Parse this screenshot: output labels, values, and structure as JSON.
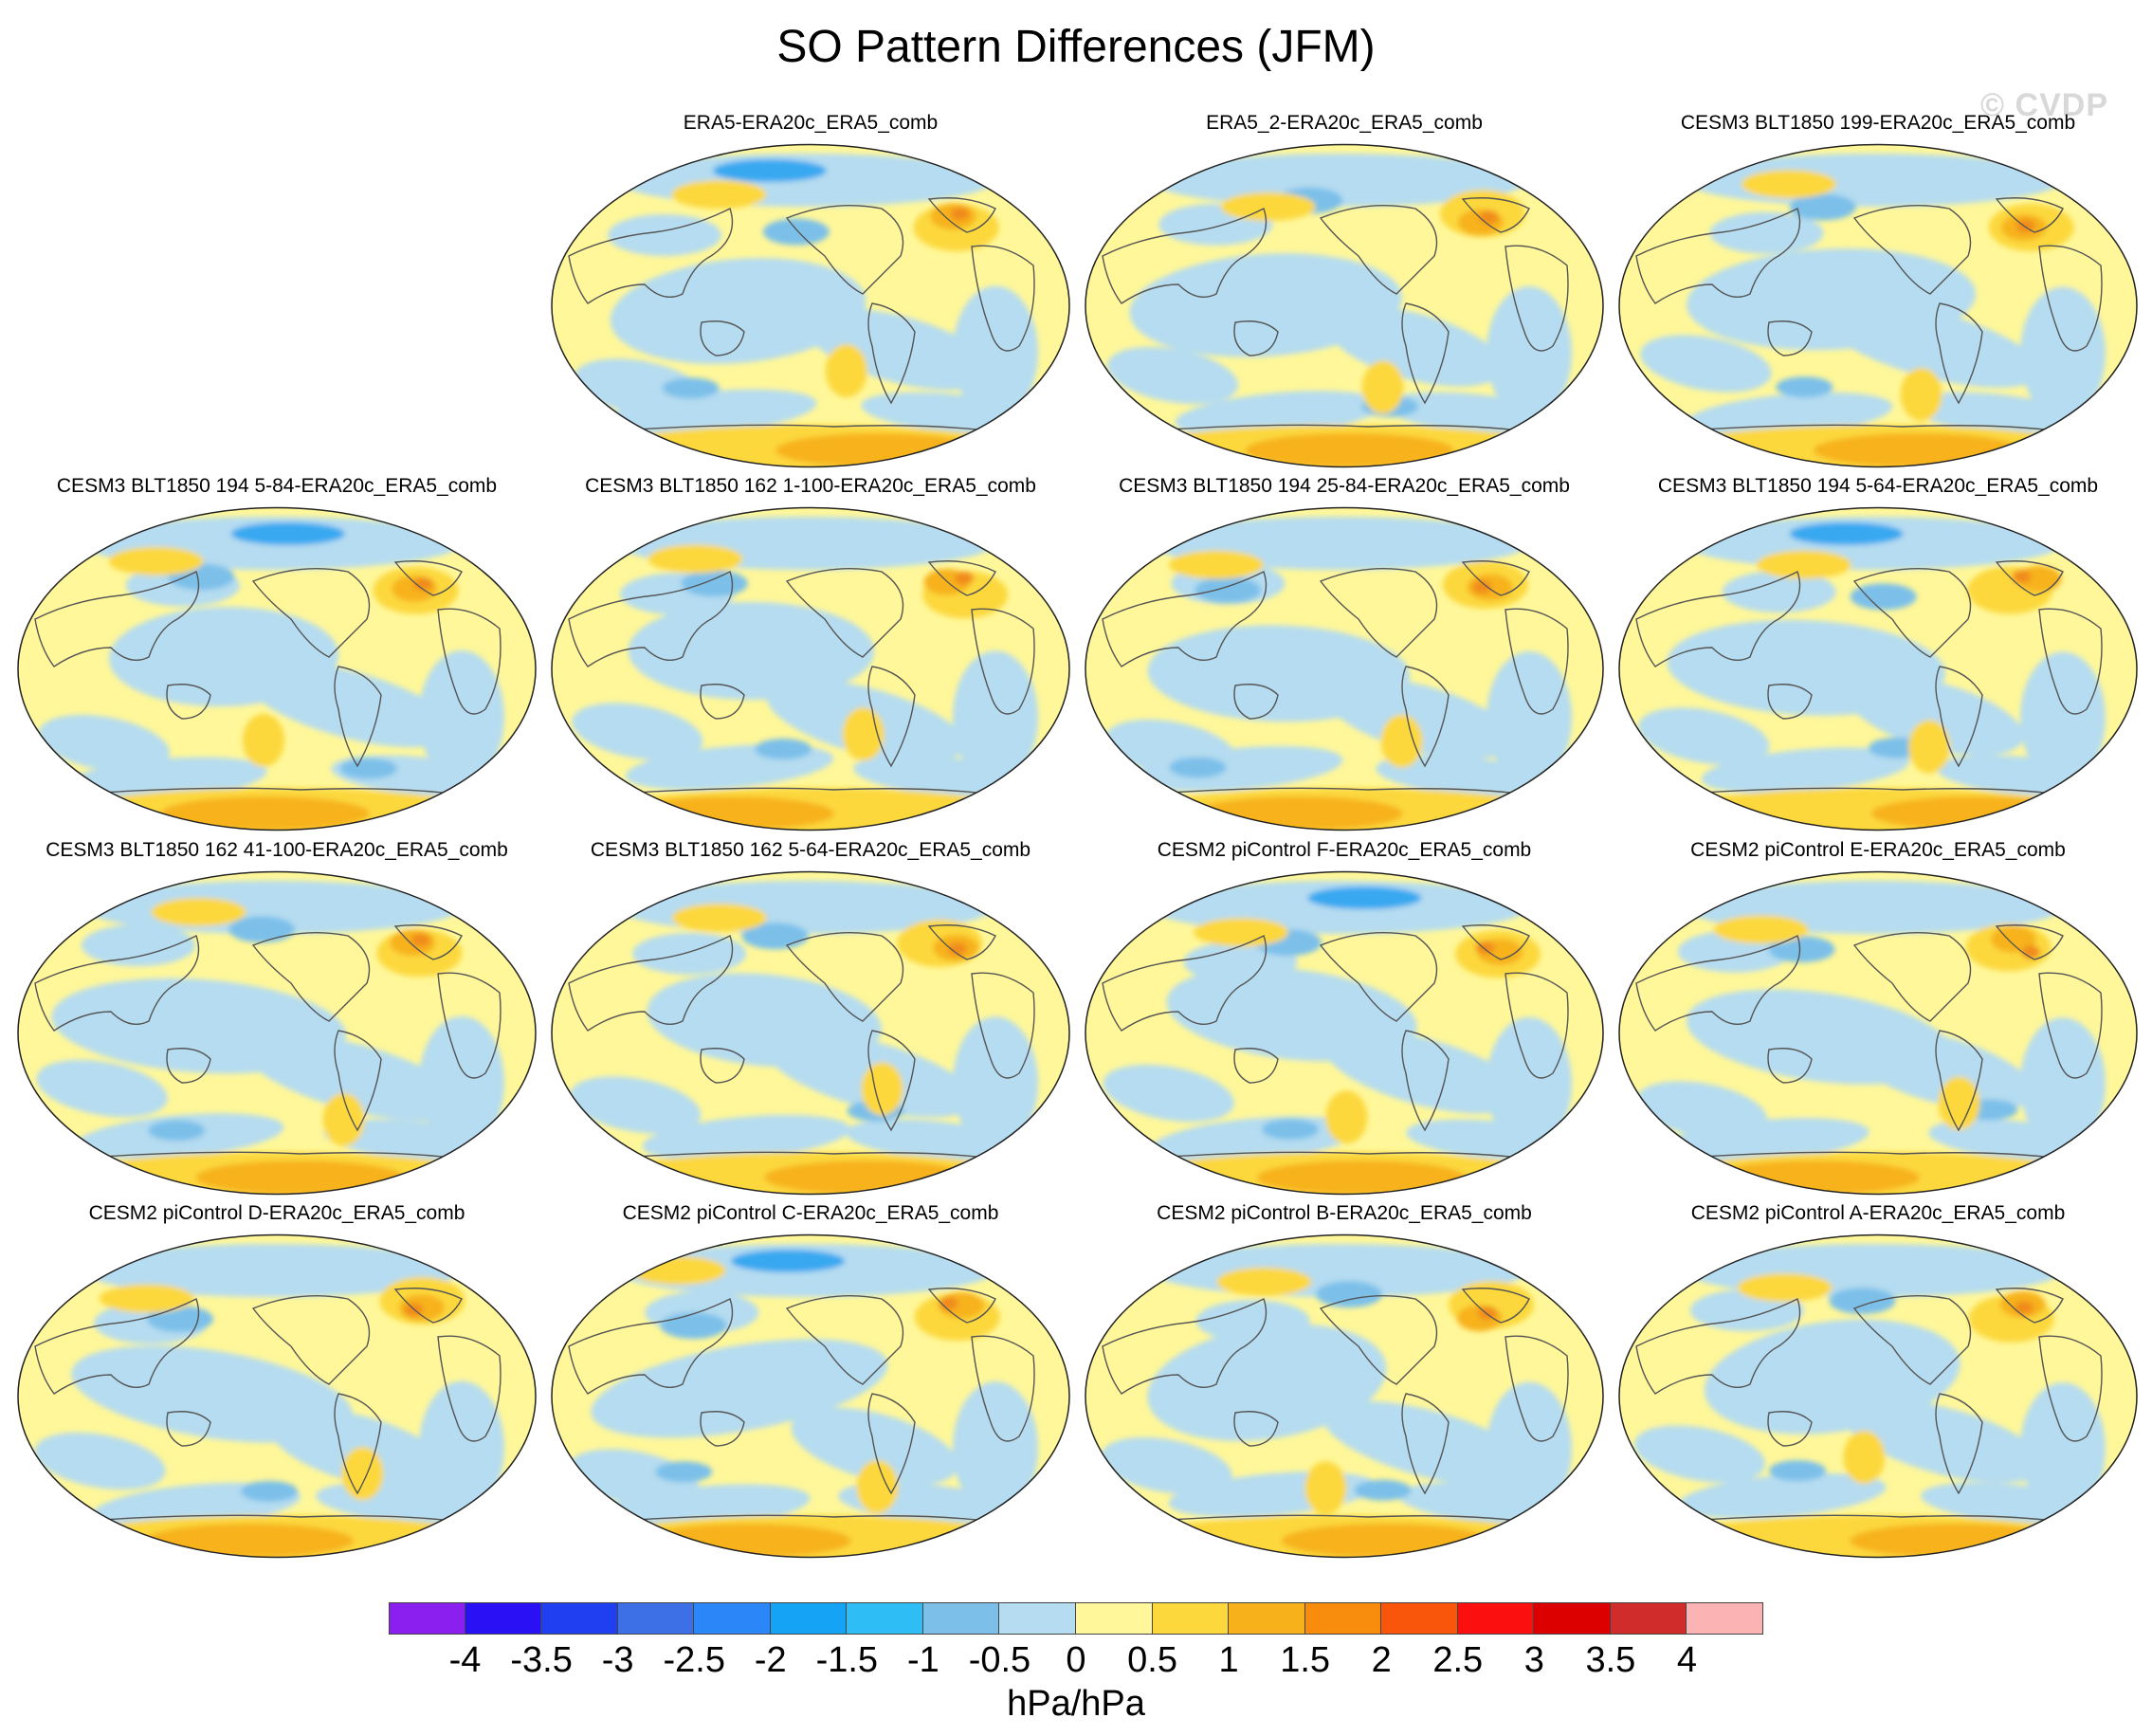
{
  "title": "SO Pattern Differences (JFM)",
  "watermark": "© CVDP",
  "colors": {
    "map_bg": "#fff799",
    "land_outline": "#555555",
    "neg_light": "#b5dcf0",
    "neg_mid": "#7cc0ea",
    "neg_strong": "#38a8f0",
    "pos_light": "#fcd83c",
    "pos_mid": "#f7b21b",
    "pos_strong": "#f08b1a"
  },
  "panels": [
    {
      "title": "ERA5-ERA20c_ERA5_comb"
    },
    {
      "title": "ERA5_2-ERA20c_ERA5_comb"
    },
    {
      "title": "CESM3 BLT1850 199-ERA20c_ERA5_comb"
    },
    {
      "title": "CESM3 BLT1850 194 5-84-ERA20c_ERA5_comb"
    },
    {
      "title": "CESM3 BLT1850 162 1-100-ERA20c_ERA5_comb"
    },
    {
      "title": "CESM3 BLT1850 194 25-84-ERA20c_ERA5_comb"
    },
    {
      "title": "CESM3 BLT1850 194 5-64-ERA20c_ERA5_comb"
    },
    {
      "title": "CESM3 BLT1850 162 41-100-ERA20c_ERA5_comb"
    },
    {
      "title": "CESM3 BLT1850 162 5-64-ERA20c_ERA5_comb"
    },
    {
      "title": "CESM2 piControl F-ERA20c_ERA5_comb"
    },
    {
      "title": "CESM2 piControl E-ERA20c_ERA5_comb"
    },
    {
      "title": "CESM2 piControl D-ERA20c_ERA5_comb"
    },
    {
      "title": "CESM2 piControl C-ERA20c_ERA5_comb"
    },
    {
      "title": "CESM2 piControl B-ERA20c_ERA5_comb"
    },
    {
      "title": "CESM2 piControl A-ERA20c_ERA5_comb"
    }
  ],
  "colorbar": {
    "colors": [
      "#8a1ff0",
      "#2a10f5",
      "#1f3ff0",
      "#3d6fe6",
      "#2b87f7",
      "#14a3f5",
      "#2fbdf5",
      "#7cc0ea",
      "#b5dcf0",
      "#fff799",
      "#fcd83c",
      "#f7b21b",
      "#f88c0c",
      "#f9560c",
      "#fb0f0f",
      "#dd0000",
      "#d12c2c",
      "#fbb3b3"
    ],
    "labels": [
      "-4",
      "-3.5",
      "-3",
      "-2.5",
      "-2",
      "-1.5",
      "-1",
      "-0.5",
      "0",
      "0.5",
      "1",
      "1.5",
      "2",
      "2.5",
      "3",
      "3.5",
      "4"
    ],
    "units": "hPa/hPa"
  }
}
